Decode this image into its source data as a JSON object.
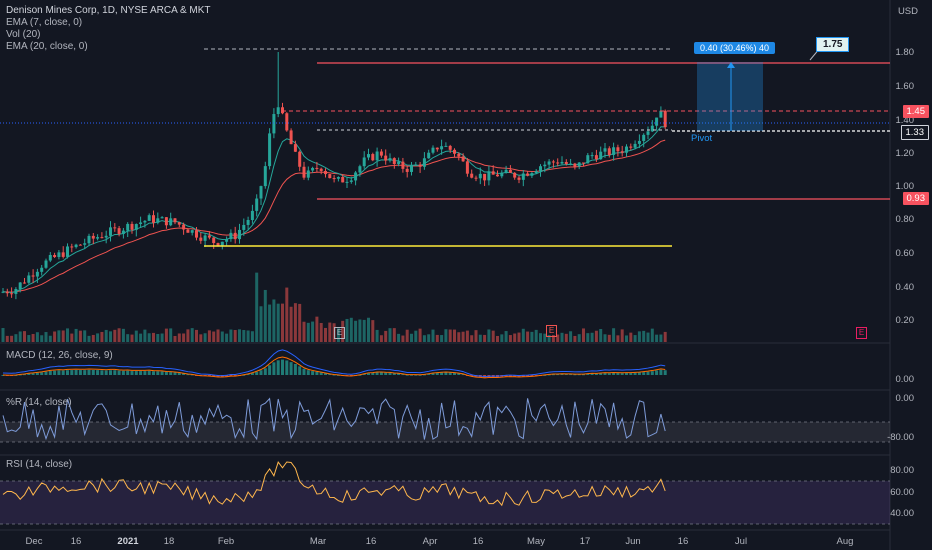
{
  "header": {
    "title": "Denison Mines Corp, 1D, NYSE ARCA & MKT",
    "indicators": [
      "EMA (7, close, 0)",
      "Vol (20)",
      "EMA (20, close, 0)"
    ],
    "currency": "USD"
  },
  "price_axis": {
    "ticks": [
      "1.80",
      "1.60",
      "1.40",
      "1.20",
      "1.00",
      "0.80",
      "0.60",
      "0.40",
      "0.20"
    ]
  },
  "price_tags": {
    "resistance": "1.45",
    "current": "1.33",
    "support": "0.93"
  },
  "annotations": {
    "target_label": "1.75",
    "projection_label": "0.40 (30.46%) 40",
    "pivot_label": "Pivot",
    "earnings_marker": "E"
  },
  "macd": {
    "title": "MACD (12, 26, close, 9)",
    "ticks": [
      "0.00"
    ]
  },
  "williams": {
    "title": "%R (14, close)",
    "ticks": [
      "0.00",
      "-80.00"
    ]
  },
  "rsi": {
    "title": "RSI (14, close)",
    "ticks": [
      "80.00",
      "60.00",
      "40.00"
    ]
  },
  "time_axis": {
    "ticks": [
      {
        "label": "Dec",
        "bold": false
      },
      {
        "label": "16",
        "bold": false
      },
      {
        "label": "2021",
        "bold": true
      },
      {
        "label": "18",
        "bold": false
      },
      {
        "label": "Feb",
        "bold": false
      },
      {
        "label": "Mar",
        "bold": false
      },
      {
        "label": "16",
        "bold": false
      },
      {
        "label": "Apr",
        "bold": false
      },
      {
        "label": "16",
        "bold": false
      },
      {
        "label": "May",
        "bold": false
      },
      {
        "label": "17",
        "bold": false
      },
      {
        "label": "Jun",
        "bold": false
      },
      {
        "label": "16",
        "bold": false
      },
      {
        "label": "Jul",
        "bold": false
      },
      {
        "label": "Aug",
        "bold": false
      }
    ]
  },
  "colors": {
    "up": "#26a69a",
    "down": "#ef5350",
    "ema_fast": "#26a69a",
    "ema_slow": "#ef5350",
    "resistance_line": "#f7525f",
    "support_yellow": "#ffeb3b",
    "projection": "#2196f3",
    "rsi_band": "#7e57c2"
  }
}
